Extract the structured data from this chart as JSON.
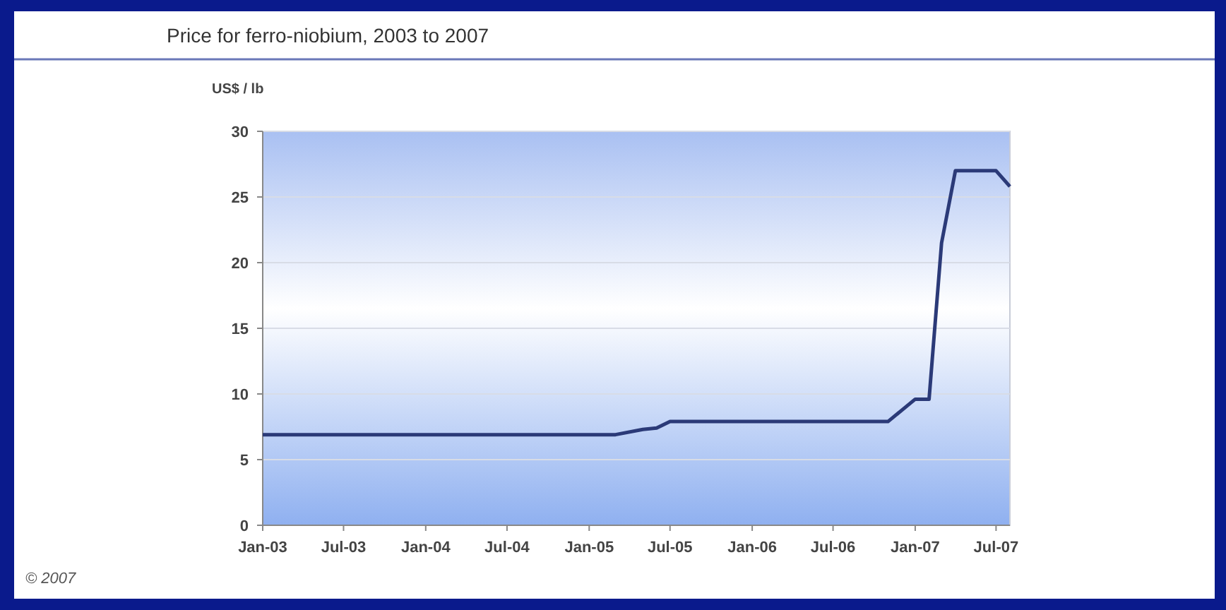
{
  "chart_data": {
    "type": "line",
    "title": "Price for ferro-niobium, 2003 to 2007",
    "ylabel": "US$ / lb",
    "x": [
      "2003-01",
      "2005-03",
      "2005-05",
      "2005-06",
      "2005-07",
      "2006-11",
      "2007-01",
      "2007-02",
      "2007-03",
      "2007-04",
      "2007-07",
      "2007-08"
    ],
    "series": [
      {
        "color": "#2b3a78",
        "values": [
          6.9,
          6.9,
          7.3,
          7.4,
          7.9,
          7.9,
          9.6,
          9.6,
          21.5,
          27,
          27,
          25.8
        ]
      }
    ],
    "xlim": [
      "2003-01",
      "2007-08"
    ],
    "xticks": [
      {
        "value": "2003-01",
        "label": "Jan-03"
      },
      {
        "value": "2003-07",
        "label": "Jul-03"
      },
      {
        "value": "2004-01",
        "label": "Jan-04"
      },
      {
        "value": "2004-07",
        "label": "Jul-04"
      },
      {
        "value": "2005-01",
        "label": "Jan-05"
      },
      {
        "value": "2005-07",
        "label": "Jul-05"
      },
      {
        "value": "2006-01",
        "label": "Jan-06"
      },
      {
        "value": "2006-07",
        "label": "Jul-06"
      },
      {
        "value": "2007-01",
        "label": "Jan-07"
      },
      {
        "value": "2007-07",
        "label": "Jul-07"
      }
    ],
    "ylim": [
      0,
      30
    ],
    "yticks": [
      0,
      5,
      10,
      15,
      20,
      25,
      30
    ],
    "grid": "y",
    "marker": "none",
    "line_style": "solid",
    "annotations": [
      "© 2007"
    ]
  }
}
